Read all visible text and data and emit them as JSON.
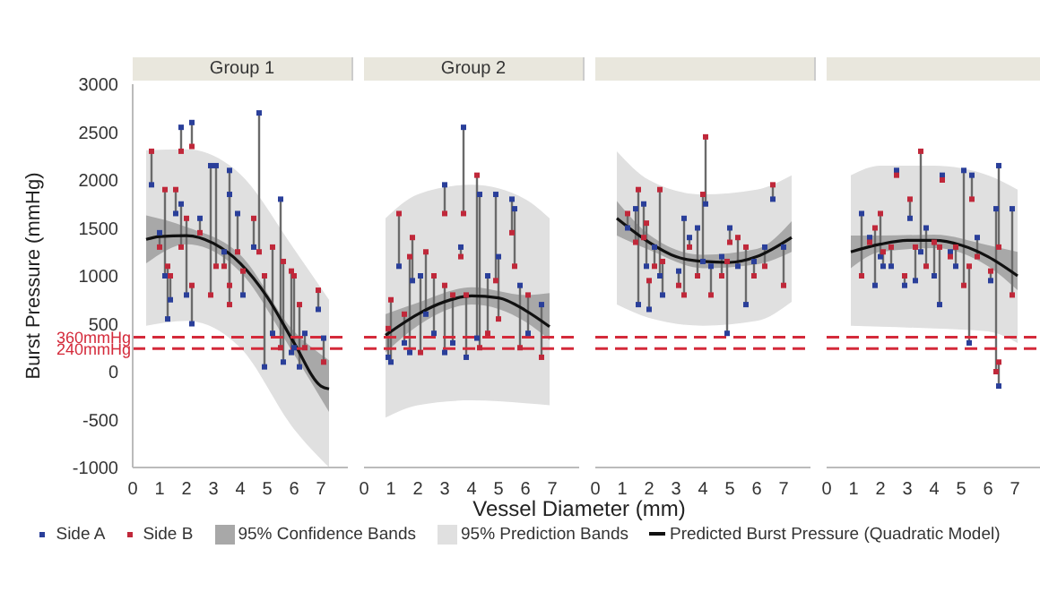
{
  "chart_data": [
    {
      "type": "scatter",
      "title": "Group 1",
      "ylabel": "Burst Pressure (mmHg)",
      "xlabel": "Vessel Diameter (mm)",
      "legend": "bottom",
      "xlim": [
        0,
        8
      ],
      "xticks": [
        0,
        1,
        2,
        3,
        4,
        5,
        6,
        7
      ],
      "ylim": [
        -1000,
        3000
      ],
      "yticks": [
        -1000,
        -500,
        0,
        500,
        1000,
        1500,
        2000,
        2500,
        3000
      ],
      "ref_lines": [
        {
          "axis": "y",
          "value": 360,
          "label": "360mmHg",
          "color": "#d42a3a",
          "line_style": "dashed"
        },
        {
          "axis": "y",
          "value": 240,
          "label": "240mmHg",
          "color": "#d42a3a",
          "line_style": "dashed"
        }
      ],
      "series": [
        {
          "name": "Side A",
          "marker": "square",
          "color": "#2a3f9a",
          "x": [
            0.7,
            1.0,
            1.2,
            1.3,
            1.4,
            1.6,
            1.8,
            1.8,
            2.0,
            2.2,
            2.2,
            2.5,
            2.9,
            3.1,
            3.4,
            3.6,
            3.6,
            3.9,
            4.1,
            4.5,
            4.7,
            4.9,
            5.2,
            5.5,
            5.6,
            5.9,
            6.0,
            6.2,
            6.4,
            6.9,
            7.1
          ],
          "values": [
            1950,
            1450,
            1000,
            550,
            750,
            1650,
            1750,
            2550,
            800,
            2600,
            500,
            1600,
            2150,
            2150,
            1250,
            2100,
            1850,
            1650,
            800,
            1300,
            2700,
            50,
            400,
            1800,
            100,
            200,
            250,
            50,
            400,
            650,
            350
          ],
          "errors": [
            [
              1950,
              2300
            ],
            [
              1300,
              1450
            ],
            [
              1000,
              1900
            ],
            [
              550,
              1100
            ],
            [
              750,
              1000
            ],
            [
              1650,
              1900
            ],
            [
              1300,
              1750
            ],
            [
              2300,
              2550
            ],
            [
              800,
              1600
            ],
            [
              2350,
              2600
            ],
            [
              500,
              900
            ],
            [
              1450,
              1600
            ],
            [
              800,
              2150
            ],
            [
              1100,
              2150
            ],
            [
              1100,
              1250
            ],
            [
              900,
              2100
            ],
            [
              700,
              1850
            ],
            [
              1250,
              1650
            ],
            [
              800,
              1050
            ],
            [
              1300,
              1600
            ],
            [
              1250,
              2700
            ],
            [
              50,
              1000
            ],
            [
              400,
              1300
            ],
            [
              250,
              1800
            ],
            [
              100,
              1150
            ],
            [
              200,
              1050
            ],
            [
              250,
              1000
            ],
            [
              50,
              700
            ],
            [
              250,
              400
            ],
            [
              650,
              850
            ],
            [
              100,
              350
            ]
          ]
        },
        {
          "name": "Side B",
          "marker": "square",
          "color": "#c0283a",
          "x": [
            0.7,
            1.0,
            1.2,
            1.3,
            1.4,
            1.6,
            1.8,
            1.8,
            2.0,
            2.2,
            2.2,
            2.5,
            2.9,
            3.1,
            3.4,
            3.6,
            3.6,
            3.9,
            4.1,
            4.5,
            4.7,
            4.9,
            5.2,
            5.5,
            5.6,
            5.9,
            6.0,
            6.2,
            6.4,
            6.9,
            7.1
          ],
          "values": [
            2300,
            1300,
            1900,
            1100,
            1000,
            1900,
            1300,
            2300,
            1600,
            2350,
            900,
            1450,
            800,
            1100,
            1100,
            900,
            700,
            1250,
            1050,
            1600,
            1250,
            1000,
            1300,
            250,
            1150,
            1050,
            1000,
            700,
            250,
            850,
            100
          ]
        },
        {
          "name": "95% Confidence Bands",
          "type": "line",
          "color": "#a8a8a8",
          "x": [
            0.5,
            2,
            4,
            6,
            7.3
          ],
          "values": [
            null,
            null,
            null,
            null,
            null
          ],
          "lower": [
            1130,
            1330,
            1040,
            180,
            -420
          ],
          "upper": [
            1630,
            1510,
            1220,
            420,
            120
          ]
        },
        {
          "name": "95% Prediction Bands",
          "type": "line",
          "color": "#e0e0e0",
          "x": [
            0.5,
            2,
            4,
            6,
            7.3
          ],
          "values": [
            null,
            null,
            null,
            null,
            null
          ],
          "lower": [
            480,
            530,
            250,
            -600,
            -1000
          ],
          "upper": [
            2310,
            2320,
            2060,
            1280,
            750
          ]
        },
        {
          "name": "Predicted Burst Pressure (Quadratic Model)",
          "type": "line",
          "color": "#111111",
          "x": [
            0.5,
            1,
            2,
            3,
            4,
            5,
            6,
            7,
            7.3
          ],
          "values": [
            1380,
            1410,
            1420,
            1340,
            1130,
            780,
            300,
            -150,
            -180
          ]
        }
      ]
    },
    {
      "type": "scatter",
      "title": "Group 2",
      "tick_labels": "x",
      "xlim": [
        0,
        8
      ],
      "xticks": [
        0,
        1,
        2,
        3,
        4,
        5,
        6,
        7
      ],
      "ylim": [
        -1000,
        3000
      ],
      "yticks": [
        -1000,
        -500,
        0,
        500,
        1000,
        1500,
        2000,
        2500,
        3000
      ],
      "ref_lines": [
        {
          "axis": "y",
          "value": 360,
          "label": null,
          "color": "#d42a3a",
          "line_style": "dashed"
        },
        {
          "axis": "y",
          "value": 240,
          "label": null,
          "color": "#d42a3a",
          "line_style": "dashed"
        }
      ],
      "series": [
        {
          "marker": "square",
          "color": "#2a3f9a",
          "x": [
            0.9,
            1.0,
            1.3,
            1.5,
            1.7,
            1.8,
            2.1,
            2.3,
            2.6,
            3.0,
            3.0,
            3.3,
            3.6,
            3.7,
            3.8,
            4.2,
            4.3,
            4.6,
            4.9,
            5.0,
            5.5,
            5.6,
            5.8,
            6.1,
            6.6
          ],
          "values": [
            150,
            100,
            1100,
            300,
            200,
            950,
            1000,
            600,
            400,
            1950,
            200,
            300,
            1300,
            2550,
            150,
            350,
            1850,
            1000,
            1850,
            1200,
            1800,
            1700,
            900,
            400,
            700
          ],
          "errors": [
            [
              150,
              450
            ],
            [
              100,
              750
            ],
            [
              1100,
              1650
            ],
            [
              300,
              600
            ],
            [
              200,
              1200
            ],
            [
              950,
              1400
            ],
            [
              200,
              1000
            ],
            [
              600,
              1250
            ],
            [
              400,
              1000
            ],
            [
              1650,
              1950
            ],
            [
              200,
              900
            ],
            [
              300,
              800
            ],
            [
              1200,
              1300
            ],
            [
              1650,
              2550
            ],
            [
              150,
              800
            ],
            [
              350,
              2050
            ],
            [
              250,
              1850
            ],
            [
              400,
              1000
            ],
            [
              950,
              1850
            ],
            [
              550,
              1200
            ],
            [
              1450,
              1800
            ],
            [
              1100,
              1700
            ],
            [
              250,
              900
            ],
            [
              400,
              800
            ],
            [
              150,
              700
            ]
          ]
        },
        {
          "marker": "square",
          "color": "#c0283a",
          "x": [
            0.9,
            1.0,
            1.3,
            1.5,
            1.7,
            1.8,
            2.1,
            2.3,
            2.6,
            3.0,
            3.0,
            3.3,
            3.6,
            3.7,
            3.8,
            4.2,
            4.3,
            4.6,
            4.9,
            5.0,
            5.5,
            5.6,
            5.8,
            6.1,
            6.6
          ],
          "values": [
            450,
            750,
            1650,
            600,
            1200,
            1400,
            200,
            1250,
            1000,
            1650,
            900,
            800,
            1200,
            1650,
            800,
            2050,
            250,
            400,
            950,
            550,
            1450,
            1100,
            250,
            800,
            150
          ]
        },
        {
          "type": "line",
          "color": "#a8a8a8",
          "x": [
            0.8,
            2,
            4,
            6,
            6.9
          ],
          "values": [
            null,
            null,
            null,
            null,
            null
          ],
          "lower": [
            200,
            480,
            700,
            520,
            330
          ],
          "upper": [
            600,
            720,
            880,
            800,
            820
          ]
        },
        {
          "type": "line",
          "color": "#e0e0e0",
          "x": [
            0.8,
            2,
            4,
            6,
            6.9
          ],
          "values": [
            null,
            null,
            null,
            null,
            null
          ],
          "lower": [
            -480,
            -350,
            -300,
            -330,
            -350
          ],
          "upper": [
            1600,
            1850,
            1950,
            1800,
            1600
          ]
        },
        {
          "type": "line",
          "color": "#111111",
          "x": [
            0.8,
            2,
            3,
            4,
            5,
            6,
            6.9
          ],
          "values": [
            380,
            600,
            730,
            790,
            770,
            640,
            470
          ]
        }
      ]
    },
    {
      "type": "scatter",
      "title": null,
      "tick_labels": "x",
      "xlim": [
        0,
        8
      ],
      "xticks": [
        0,
        1,
        2,
        3,
        4,
        5,
        6,
        7
      ],
      "ylim": [
        -1000,
        3000
      ],
      "yticks": [
        -1000,
        -500,
        0,
        500,
        1000,
        1500,
        2000,
        2500,
        3000
      ],
      "ref_lines": [
        {
          "axis": "y",
          "value": 360,
          "label": null,
          "color": "#d42a3a",
          "line_style": "dashed"
        },
        {
          "axis": "y",
          "value": 240,
          "label": null,
          "color": "#d42a3a",
          "line_style": "dashed"
        }
      ],
      "series": [
        {
          "marker": "square",
          "color": "#2a3f9a",
          "x": [
            1.2,
            1.5,
            1.6,
            1.8,
            1.9,
            2.0,
            2.2,
            2.4,
            2.5,
            3.1,
            3.3,
            3.5,
            3.8,
            4.0,
            4.1,
            4.3,
            4.7,
            4.9,
            5.0,
            5.3,
            5.6,
            5.9,
            6.3,
            6.6,
            7.0
          ],
          "values": [
            1500,
            1700,
            700,
            1750,
            1100,
            650,
            1300,
            1000,
            800,
            1050,
            1600,
            1400,
            1500,
            1150,
            1750,
            1100,
            1200,
            400,
            1500,
            1100,
            700,
            1150,
            1300,
            1800,
            1300
          ],
          "errors": [
            [
              1500,
              1650
            ],
            [
              1350,
              1700
            ],
            [
              700,
              1900
            ],
            [
              1400,
              1750
            ],
            [
              1100,
              1550
            ],
            [
              650,
              950
            ],
            [
              1100,
              1300
            ],
            [
              1000,
              1900
            ],
            [
              800,
              1150
            ],
            [
              900,
              1050
            ],
            [
              800,
              1600
            ],
            [
              1300,
              1400
            ],
            [
              1000,
              1500
            ],
            [
              1150,
              1850
            ],
            [
              1750,
              2450
            ],
            [
              800,
              1100
            ],
            [
              1000,
              1200
            ],
            [
              400,
              1150
            ],
            [
              1350,
              1500
            ],
            [
              1100,
              1400
            ],
            [
              700,
              1300
            ],
            [
              1000,
              1150
            ],
            [
              1100,
              1300
            ],
            [
              1800,
              1950
            ],
            [
              900,
              1300
            ]
          ]
        },
        {
          "marker": "square",
          "color": "#c0283a",
          "x": [
            1.2,
            1.5,
            1.6,
            1.8,
            1.9,
            2.0,
            2.2,
            2.4,
            2.5,
            3.1,
            3.3,
            3.5,
            3.8,
            4.0,
            4.1,
            4.3,
            4.7,
            4.9,
            5.0,
            5.3,
            5.6,
            5.9,
            6.3,
            6.6,
            7.0
          ],
          "values": [
            1650,
            1350,
            1900,
            1400,
            1550,
            950,
            1100,
            1900,
            1150,
            900,
            800,
            1300,
            1000,
            1850,
            2450,
            800,
            1000,
            1150,
            1350,
            1400,
            1300,
            1000,
            1100,
            1950,
            900
          ]
        },
        {
          "type": "line",
          "color": "#a8a8a8",
          "x": [
            0.8,
            2,
            4,
            6,
            7.3
          ],
          "values": [
            null,
            null,
            null,
            null,
            null
          ],
          "lower": [
            1420,
            1270,
            1080,
            1120,
            1250
          ],
          "upper": [
            1780,
            1430,
            1220,
            1280,
            1570
          ]
        },
        {
          "type": "line",
          "color": "#e0e0e0",
          "x": [
            0.8,
            2,
            4,
            6,
            7.3
          ],
          "values": [
            null,
            null,
            null,
            null,
            null
          ],
          "lower": [
            700,
            560,
            480,
            530,
            730
          ],
          "upper": [
            2300,
            2000,
            1850,
            1900,
            2050
          ]
        },
        {
          "type": "line",
          "color": "#111111",
          "x": [
            0.8,
            2,
            3,
            4,
            5,
            6,
            7.3
          ],
          "values": [
            1600,
            1350,
            1200,
            1150,
            1140,
            1200,
            1400
          ]
        }
      ]
    },
    {
      "type": "scatter",
      "title": null,
      "tick_labels": "x",
      "xlim": [
        0,
        8
      ],
      "xticks": [
        0,
        1,
        2,
        3,
        4,
        5,
        6,
        7
      ],
      "ylim": [
        -1000,
        3000
      ],
      "yticks": [
        -1000,
        -500,
        0,
        500,
        1000,
        1500,
        2000,
        2500,
        3000
      ],
      "ref_lines": [
        {
          "axis": "y",
          "value": 360,
          "label": null,
          "color": "#d42a3a",
          "line_style": "dashed"
        },
        {
          "axis": "y",
          "value": 240,
          "label": null,
          "color": "#d42a3a",
          "line_style": "dashed"
        }
      ],
      "series": [
        {
          "marker": "square",
          "color": "#2a3f9a",
          "x": [
            1.3,
            1.6,
            1.8,
            2.0,
            2.1,
            2.4,
            2.6,
            2.9,
            3.1,
            3.3,
            3.5,
            3.7,
            4.0,
            4.2,
            4.3,
            4.6,
            4.8,
            5.1,
            5.3,
            5.4,
            5.6,
            6.1,
            6.3,
            6.4,
            6.4,
            6.9
          ],
          "values": [
            1650,
            1400,
            900,
            1200,
            1100,
            1100,
            2100,
            900,
            1600,
            950,
            1250,
            1500,
            1000,
            700,
            2050,
            1250,
            1100,
            2100,
            300,
            2050,
            1400,
            950,
            1700,
            -150,
            2150,
            1700
          ],
          "errors": [
            [
              1000,
              1650
            ],
            [
              1350,
              1400
            ],
            [
              900,
              1500
            ],
            [
              1200,
              1650
            ],
            [
              1100,
              1250
            ],
            [
              1100,
              1300
            ],
            [
              2050,
              2100
            ],
            [
              900,
              1000
            ],
            [
              1600,
              1800
            ],
            [
              950,
              1300
            ],
            [
              1250,
              2300
            ],
            [
              1100,
              1500
            ],
            [
              1000,
              1350
            ],
            [
              700,
              1300
            ],
            [
              2000,
              2050
            ],
            [
              1200,
              1250
            ],
            [
              1100,
              1300
            ],
            [
              900,
              2100
            ],
            [
              300,
              1100
            ],
            [
              1800,
              2050
            ],
            [
              1200,
              1400
            ],
            [
              950,
              1050
            ],
            [
              0,
              1700
            ],
            [
              -150,
              100
            ],
            [
              1300,
              2150
            ],
            [
              800,
              1700
            ]
          ]
        },
        {
          "marker": "square",
          "color": "#c0283a",
          "x": [
            1.3,
            1.6,
            1.8,
            2.0,
            2.1,
            2.4,
            2.6,
            2.9,
            3.1,
            3.3,
            3.5,
            3.7,
            4.0,
            4.2,
            4.3,
            4.6,
            4.8,
            5.1,
            5.3,
            5.4,
            5.6,
            6.1,
            6.3,
            6.4,
            6.4,
            6.9
          ],
          "values": [
            1000,
            1350,
            1500,
            1650,
            1250,
            1300,
            2050,
            1000,
            1800,
            1300,
            2300,
            1100,
            1350,
            1300,
            2000,
            1200,
            1300,
            900,
            1100,
            1800,
            1200,
            1050,
            0,
            100,
            1300,
            800
          ]
        },
        {
          "type": "line",
          "color": "#a8a8a8",
          "x": [
            0.9,
            2,
            4,
            6,
            7.1
          ],
          "values": [
            null,
            null,
            null,
            null,
            null
          ],
          "lower": [
            1080,
            1250,
            1290,
            1100,
            850
          ],
          "upper": [
            1420,
            1420,
            1430,
            1320,
            1250
          ]
        },
        {
          "type": "line",
          "color": "#e0e0e0",
          "x": [
            0.9,
            2,
            4,
            6,
            7.1
          ],
          "values": [
            null,
            null,
            null,
            null,
            null
          ],
          "lower": [
            480,
            470,
            450,
            420,
            300
          ],
          "upper": [
            2050,
            2150,
            2150,
            2050,
            1900
          ]
        },
        {
          "type": "line",
          "color": "#111111",
          "x": [
            0.9,
            2,
            3,
            4,
            5,
            6,
            7.1
          ],
          "values": [
            1250,
            1330,
            1370,
            1370,
            1320,
            1200,
            1000
          ]
        }
      ]
    }
  ]
}
